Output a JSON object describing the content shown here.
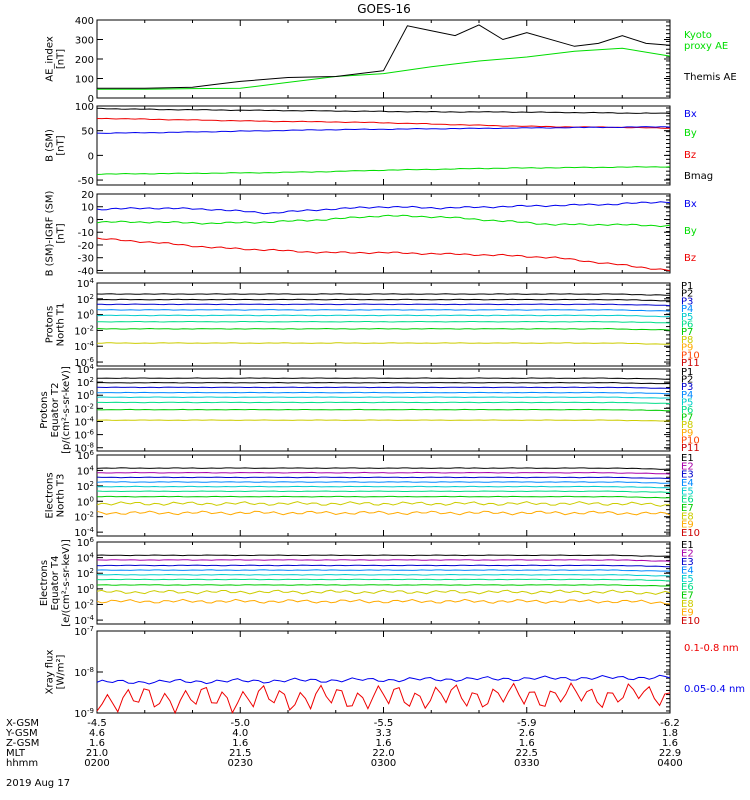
{
  "title": "GOES-16",
  "date_label": "2019 Aug 17",
  "colors": {
    "black": "#000000",
    "blue": "#0000ee",
    "green": "#00dd00",
    "red": "#ee0000",
    "p": [
      "#000000",
      "#000000",
      "#0000cc",
      "#0088ff",
      "#00cccc",
      "#00dd88",
      "#00cc00",
      "#cccc00",
      "#ffaa00",
      "#ff4400",
      "#cc0000"
    ],
    "e": [
      "#000000",
      "#aa00aa",
      "#0000cc",
      "#0088ff",
      "#00cccc",
      "#00dd88",
      "#00cc00",
      "#cccc00",
      "#ffaa00",
      "#cc0000"
    ]
  },
  "chart_data": [
    {
      "id": "ae",
      "type": "line",
      "ylabel": "AE_index\n[nT]",
      "ylim": [
        0,
        400
      ],
      "yticks": [
        "0",
        "100",
        "200",
        "300",
        "400"
      ],
      "legend": [
        {
          "text": "Kyoto\nproxy AE",
          "color": "green"
        },
        {
          "text": "Themis AE",
          "color": "black"
        }
      ],
      "series": [
        {
          "name": "Kyoto proxy AE",
          "color": "green",
          "x": [
            "0200",
            "0210",
            "0220",
            "0230",
            "0240",
            "0250",
            "0300",
            "0310",
            "0320",
            "0330",
            "0340",
            "0350",
            "0400"
          ],
          "y": [
            45,
            45,
            48,
            50,
            80,
            110,
            125,
            160,
            190,
            210,
            240,
            255,
            215
          ]
        },
        {
          "name": "Themis AE",
          "color": "black",
          "x": [
            "0200",
            "0210",
            "0220",
            "0225",
            "0230",
            "0240",
            "0250",
            "0300",
            "0305",
            "0310",
            "0315",
            "0320",
            "0325",
            "0330",
            "0340",
            "0345",
            "0350",
            "0355",
            "0400"
          ],
          "y": [
            50,
            50,
            55,
            70,
            85,
            105,
            110,
            140,
            370,
            345,
            320,
            375,
            300,
            335,
            265,
            280,
            320,
            280,
            270
          ]
        }
      ]
    },
    {
      "id": "b_sm",
      "type": "line",
      "ylabel": "B (SM)\n[nT]",
      "ylim": [
        -60,
        100
      ],
      "yticks": [
        "-50",
        "0",
        "50",
        "100"
      ],
      "legend": [
        {
          "text": "Bx",
          "color": "blue"
        },
        {
          "text": "By",
          "color": "green"
        },
        {
          "text": "Bz",
          "color": "red"
        },
        {
          "text": "Bmag",
          "color": "black"
        }
      ],
      "series": [
        {
          "name": "Bmag",
          "color": "black",
          "y": [
            95,
            93,
            92,
            91,
            90,
            89,
            88,
            88,
            87,
            86,
            85
          ]
        },
        {
          "name": "Bz",
          "color": "red",
          "y": [
            75,
            73,
            71,
            69,
            68,
            66,
            63,
            60,
            58,
            57,
            55
          ]
        },
        {
          "name": "Bx",
          "color": "blue",
          "y": [
            45,
            46,
            48,
            50,
            52,
            53,
            54,
            55,
            56,
            57,
            58
          ]
        },
        {
          "name": "By",
          "color": "green",
          "y": [
            -38,
            -37,
            -36,
            -35,
            -33,
            -30,
            -28,
            -26,
            -25,
            -24,
            -23
          ]
        }
      ]
    },
    {
      "id": "b_igrf",
      "type": "line",
      "ylabel": "B (SM)-IGRF (SM)\n[nT]",
      "ylim": [
        -42,
        20
      ],
      "yticks": [
        "-40",
        "-30",
        "-20",
        "-10",
        "0",
        "10",
        "20"
      ],
      "legend": [
        {
          "text": "Bx",
          "color": "blue"
        },
        {
          "text": "By",
          "color": "green"
        },
        {
          "text": "Bz",
          "color": "red"
        }
      ],
      "series": [
        {
          "name": "Bx",
          "color": "blue",
          "y": [
            8,
            9,
            8,
            5,
            8,
            10,
            9,
            10,
            11,
            12,
            14
          ]
        },
        {
          "name": "By",
          "color": "green",
          "y": [
            -2,
            -2,
            -3,
            -2,
            0,
            3,
            2,
            -1,
            -4,
            -4,
            -5
          ]
        },
        {
          "name": "Bz",
          "color": "red",
          "y": [
            -15,
            -18,
            -22,
            -24,
            -26,
            -26,
            -27,
            -28,
            -30,
            -35,
            -40
          ]
        }
      ]
    },
    {
      "id": "p_t1",
      "type": "line",
      "log": true,
      "ylabel": "Protons\nNorth T1",
      "ylim": [
        -6.5,
        4
      ],
      "yticks_exp": [
        4,
        2,
        0,
        -2,
        -4,
        -6
      ],
      "channels": [
        "P1",
        "P2",
        "P3",
        "P4",
        "P5",
        "P6",
        "P7",
        "P8",
        "P9",
        "P10",
        "P11"
      ],
      "levels": [
        2.6,
        1.9,
        1.3,
        0.6,
        -0.1,
        -0.9,
        -1.8,
        -3.6,
        -99,
        -99,
        -99
      ]
    },
    {
      "id": "p_t2",
      "type": "line",
      "log": true,
      "ylabel": "Protons\nEquator T2\n[p/(cm²-s-sr-keV)]",
      "ylim": [
        -8.5,
        4
      ],
      "yticks_exp": [
        4,
        2,
        0,
        -2,
        -4,
        -6,
        -8
      ],
      "channels": [
        "P1",
        "P2",
        "P3",
        "P4",
        "P5",
        "P6",
        "P7",
        "P8",
        "P9",
        "P10",
        "P11"
      ],
      "levels": [
        2.6,
        1.9,
        1.2,
        0.4,
        -0.3,
        -1.1,
        -2.2,
        -3.8,
        -99,
        -99,
        -99
      ]
    },
    {
      "id": "e_t3",
      "type": "line",
      "log": true,
      "ylabel": "Electrons\nNorth T3",
      "ylim": [
        -4.5,
        6
      ],
      "yticks_exp": [
        6,
        4,
        2,
        0,
        -2,
        -4
      ],
      "channels": [
        "E1",
        "E2",
        "E3",
        "E4",
        "E5",
        "E6",
        "E7",
        "E8",
        "E9",
        "E10"
      ],
      "levels": [
        4.3,
        3.7,
        3.1,
        2.5,
        1.9,
        1.3,
        0.6,
        -0.3,
        -1.5,
        -99
      ]
    },
    {
      "id": "e_t4",
      "type": "line",
      "log": true,
      "ylabel": "Electrons\nEquator T4\n[e/(cm²-s-sr-keV)]",
      "ylim": [
        -4.5,
        6
      ],
      "yticks_exp": [
        6,
        4,
        2,
        0,
        -2,
        -4
      ],
      "channels": [
        "E1",
        "E2",
        "E3",
        "E4",
        "E5",
        "E6",
        "E7",
        "E8",
        "E9",
        "E10"
      ],
      "levels": [
        4.3,
        3.7,
        3.0,
        2.4,
        1.8,
        1.2,
        0.5,
        -0.4,
        -1.6,
        -99
      ]
    },
    {
      "id": "xray",
      "type": "line",
      "log": true,
      "ylabel": "Xray flux\n[W/m²]",
      "ylim": [
        -9,
        -7
      ],
      "yticks_exp": [
        -7,
        -8,
        -9
      ],
      "legend": [
        {
          "text": "0.1-0.8 nm",
          "color": "red"
        },
        {
          "text": "0.05-0.4 nm",
          "color": "blue"
        }
      ],
      "series": [
        {
          "name": "0.05-0.4 nm",
          "color": "blue",
          "level": -8.25
        },
        {
          "name": "0.1-0.8 nm",
          "color": "red",
          "level": -8.8
        }
      ]
    }
  ],
  "x_axis": {
    "row_labels": [
      "X-GSM",
      "Y-GSM",
      "Z-GSM",
      "MLT",
      "hhmm"
    ],
    "ticks": [
      {
        "vals": [
          "-4.5",
          "4.6",
          "1.6",
          "21.0",
          "0200"
        ]
      },
      {
        "vals": [
          "-5.0",
          "4.0",
          "1.6",
          "21.5",
          "0230"
        ]
      },
      {
        "vals": [
          "-5.5",
          "3.3",
          "1.6",
          "22.0",
          "0300"
        ]
      },
      {
        "vals": [
          "-5.9",
          "2.6",
          "1.6",
          "22.5",
          "0330"
        ]
      },
      {
        "vals": [
          "-6.2",
          "1.8",
          "1.6",
          "22.9",
          "0400"
        ]
      }
    ]
  }
}
